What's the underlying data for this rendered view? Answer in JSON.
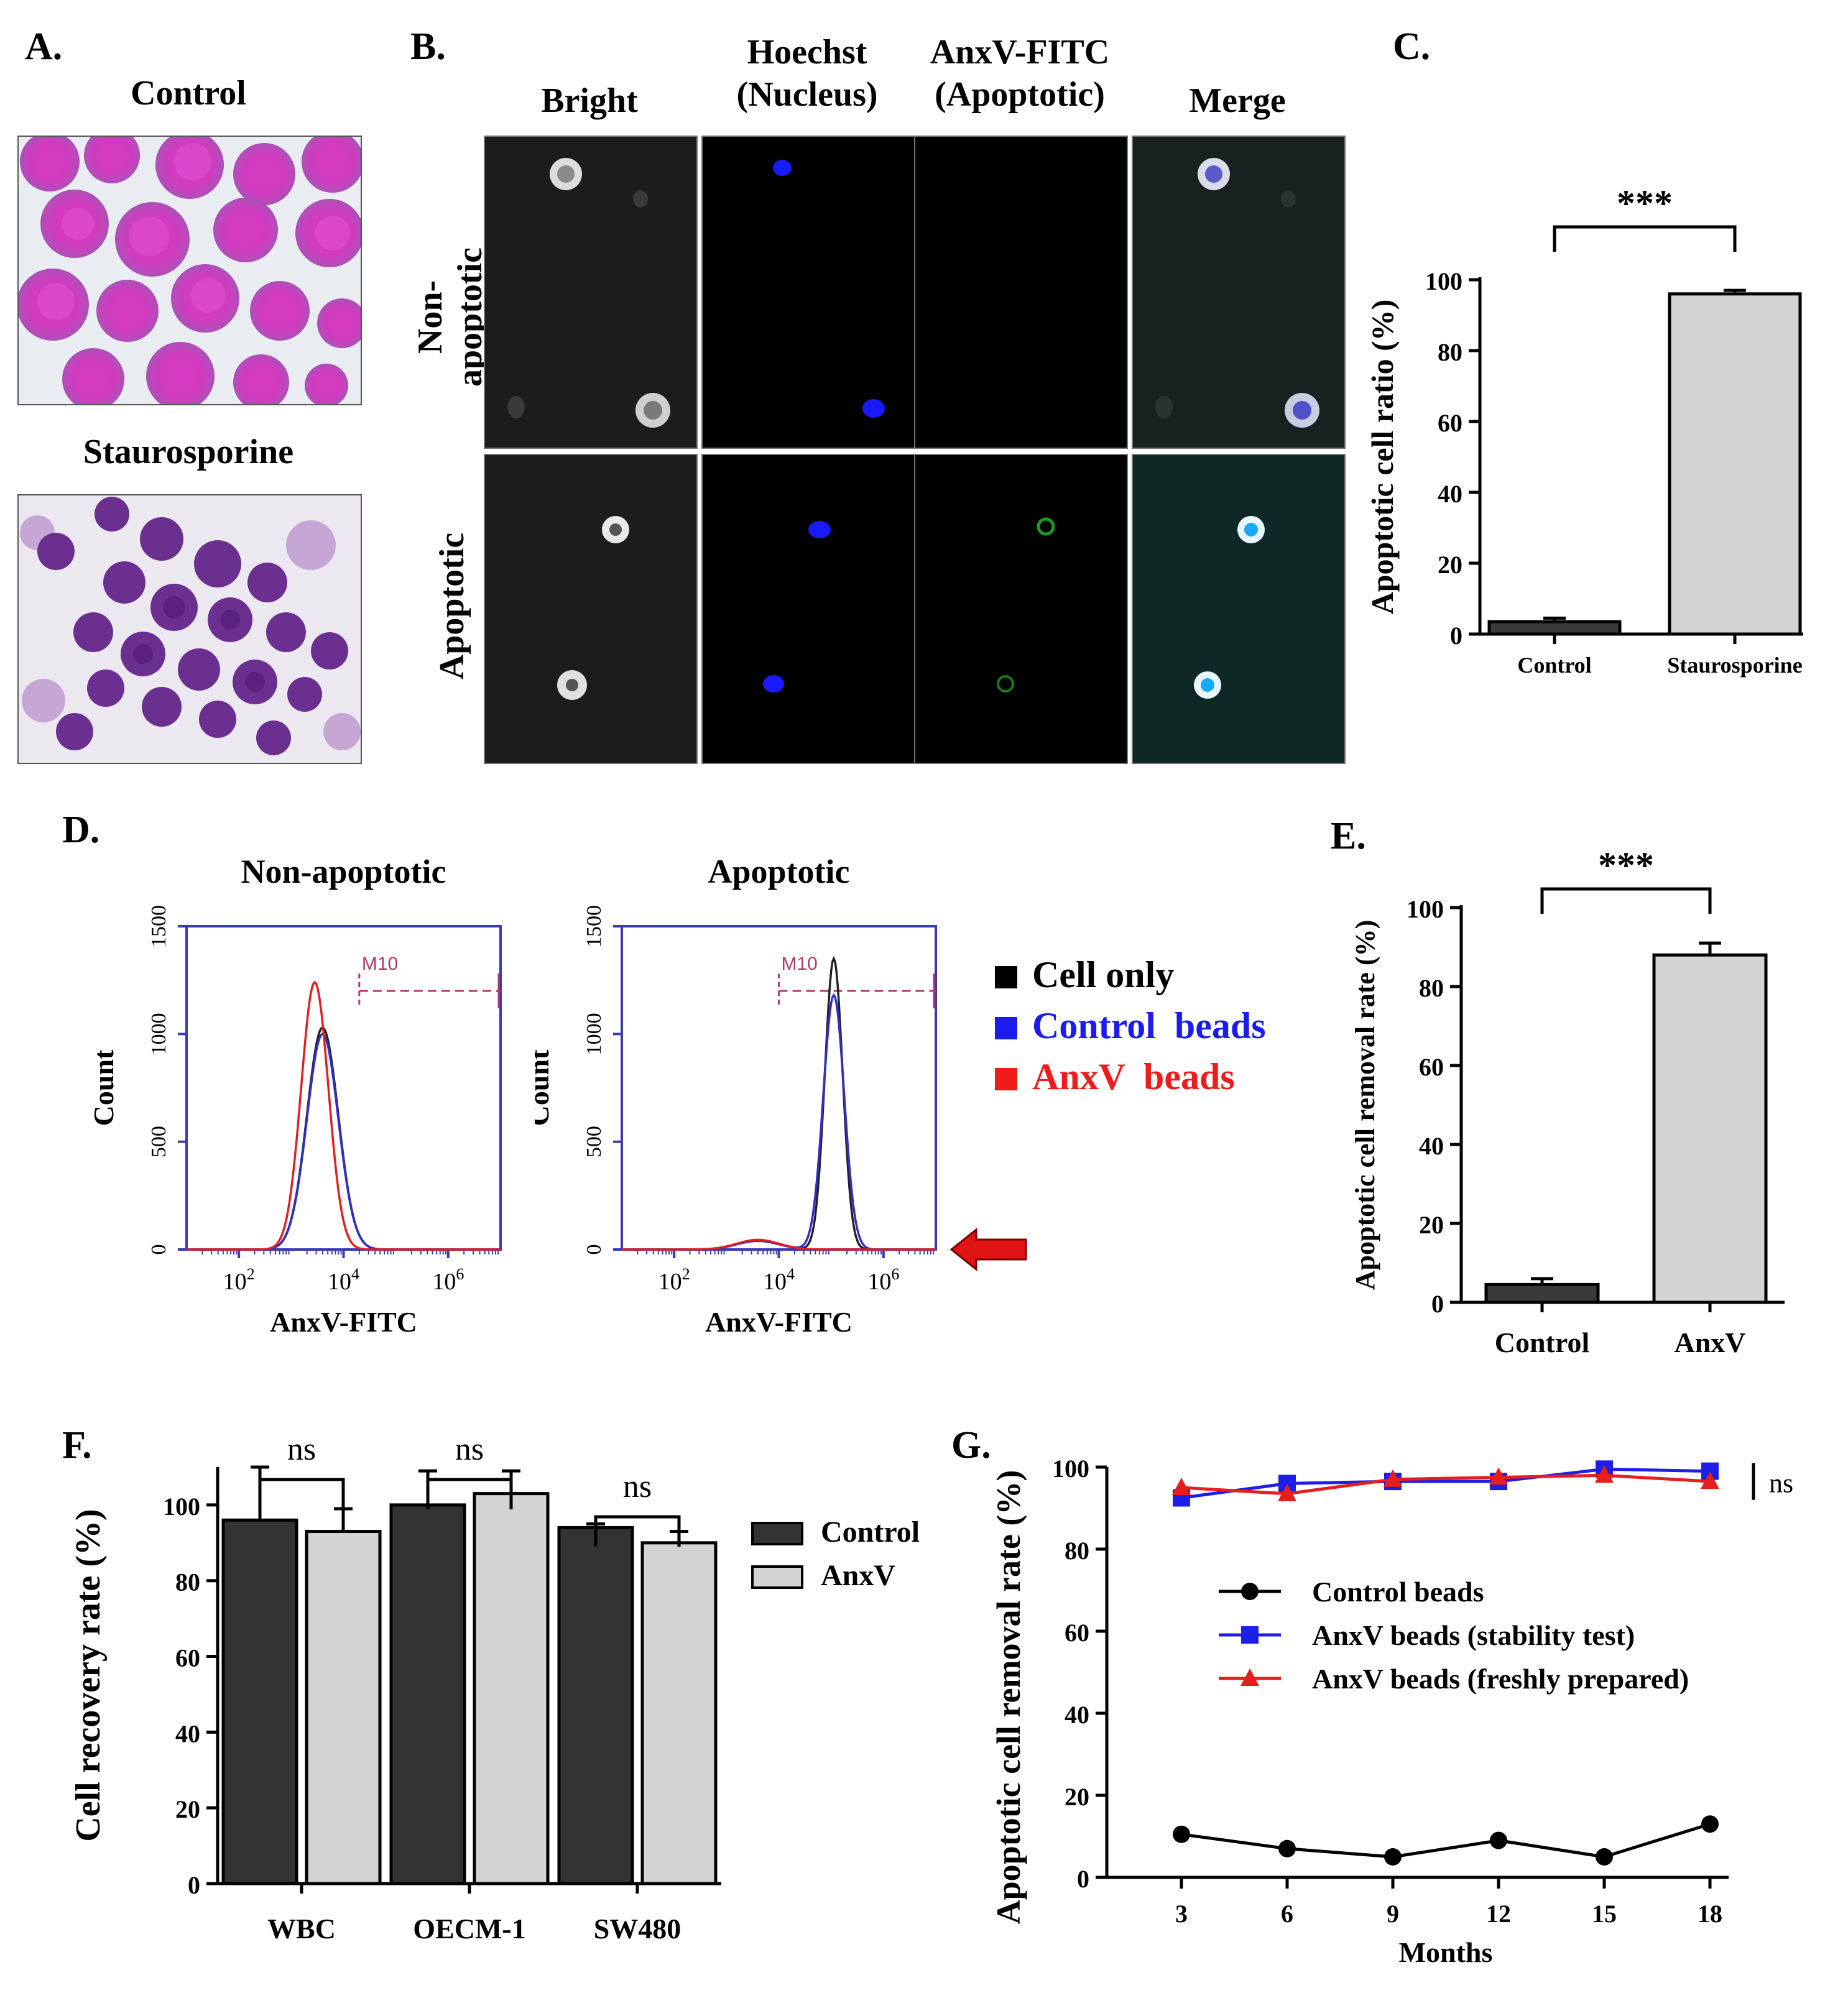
{
  "panel_a": {
    "label": "A.",
    "control_title": "Control",
    "treated_title": "Staurosporine"
  },
  "panel_b": {
    "label": "B.",
    "columns": [
      "Bright",
      "Hoechst\n(Nucleus)",
      "AnxV-FITC\n(Apoptotic)",
      "Merge"
    ],
    "rows": [
      "Non-\napoptotic",
      "Apoptotic"
    ]
  },
  "panel_c": {
    "label": "C."
  },
  "panel_d": {
    "label": "D."
  },
  "panel_e": {
    "label": "E."
  },
  "panel_f": {
    "label": "F."
  },
  "panel_g": {
    "label": "G."
  },
  "chart_data": [
    {
      "id": "C",
      "type": "bar",
      "categories": [
        "Control",
        "Staurosporine"
      ],
      "values": [
        3.5,
        96
      ],
      "errors": [
        1,
        1
      ],
      "colors": [
        "#3a3a3a",
        "#d3d3d3"
      ],
      "ylabel": "Apoptotic cell ratio (%)",
      "xlabel": "",
      "ylim": [
        0,
        100
      ],
      "yticks": [
        0,
        20,
        40,
        60,
        80,
        100
      ],
      "significance": "***"
    },
    {
      "id": "D1",
      "type": "line",
      "title": "Non-apoptotic",
      "xlabel": "AnxV-FITC",
      "ylabel": "Count",
      "xscale": "log",
      "xlim": [
        10,
        10000000
      ],
      "ylim": [
        0,
        1500
      ],
      "xtick_exponents": [
        2,
        4,
        6
      ],
      "yticks": [
        0,
        500,
        1000,
        1500
      ],
      "gate_label": "M10",
      "gate_range": [
        20000,
        10000000
      ],
      "gate_level": 1200,
      "series": [
        {
          "name": "Cell only",
          "color": "#222222",
          "peak_log": 3.6,
          "peak": 1030,
          "width": 0.3
        },
        {
          "name": "Control beads",
          "color": "#2f2fc8",
          "peak_log": 3.6,
          "peak": 1000,
          "width": 0.3
        },
        {
          "name": "AnxV beads",
          "color": "#e02020",
          "peak_log": 3.45,
          "peak": 1240,
          "width": 0.26
        }
      ]
    },
    {
      "id": "D2",
      "type": "line",
      "title": "Apoptotic",
      "xlabel": "AnxV-FITC",
      "ylabel": "Count",
      "xscale": "log",
      "xlim": [
        10,
        10000000
      ],
      "ylim": [
        0,
        1500
      ],
      "xtick_exponents": [
        2,
        4,
        6
      ],
      "yticks": [
        0,
        500,
        1000,
        1500
      ],
      "gate_label": "M10",
      "gate_range": [
        10000,
        10000000
      ],
      "gate_level": 1200,
      "series": [
        {
          "name": "Cell only",
          "color": "#222222",
          "peak_log": 5.05,
          "peak": 1350,
          "width": 0.17
        },
        {
          "name": "Control beads",
          "color": "#2f2fc8",
          "peak_log": 5.05,
          "peak": 1180,
          "width": 0.2
        },
        {
          "name": "AnxV beads",
          "color": "#e02020",
          "peak_log": 3.6,
          "peak": 45,
          "width": 0.4
        }
      ]
    },
    {
      "id": "D-legend",
      "type": "legend",
      "entries": [
        {
          "name": "Cell only",
          "color": "#000000"
        },
        {
          "name": "Control  beads",
          "color": "#1c1cf0"
        },
        {
          "name": "AnxV  beads",
          "color": "#f01c1c"
        }
      ]
    },
    {
      "id": "E",
      "type": "bar",
      "categories": [
        "Control",
        "AnxV"
      ],
      "values": [
        4.5,
        88
      ],
      "errors": [
        1.5,
        3
      ],
      "colors": [
        "#3a3a3a",
        "#d3d3d3"
      ],
      "ylabel": "Apoptotic cell removal rate (%)",
      "xlabel": "",
      "ylim": [
        0,
        100
      ],
      "yticks": [
        0,
        20,
        40,
        60,
        80,
        100
      ],
      "significance": "***"
    },
    {
      "id": "F",
      "type": "bar",
      "categories": [
        "WBC",
        "OECM-1",
        "SW480"
      ],
      "series": [
        {
          "name": "Control",
          "color": "#333333",
          "values": [
            96,
            100,
            94
          ],
          "errors": [
            14,
            9,
            1
          ]
        },
        {
          "name": "AnxV",
          "color": "#d3d3d3",
          "values": [
            93,
            103,
            90
          ],
          "errors": [
            6,
            6,
            3
          ]
        }
      ],
      "ylabel": "Cell recovery rate (%)",
      "xlabel": "",
      "ylim": [
        0,
        110
      ],
      "yticks": [
        0,
        20,
        40,
        60,
        80,
        100
      ],
      "significance": [
        "ns",
        "ns",
        "ns"
      ]
    },
    {
      "id": "G",
      "type": "line",
      "x": [
        3,
        6,
        9,
        12,
        15,
        18
      ],
      "series": [
        {
          "name": "Control beads",
          "color": "#000000",
          "marker": "circle",
          "values": [
            10.5,
            7,
            5,
            9,
            5,
            13
          ]
        },
        {
          "name": "AnxV beads (stability test)",
          "color": "#1e1ee6",
          "marker": "square",
          "values": [
            92.5,
            96,
            96.5,
            96.5,
            99.5,
            99
          ]
        },
        {
          "name": "AnxV beads (freshly prepared)",
          "color": "#e61e1e",
          "marker": "triangle",
          "values": [
            95,
            93.5,
            97,
            97.5,
            98,
            96.5
          ]
        }
      ],
      "xlabel": "Months",
      "ylabel": "Apoptotic cell removal rate (%)",
      "ylim": [
        0,
        100
      ],
      "yticks": [
        0,
        20,
        40,
        60,
        80,
        100
      ],
      "xticks": [
        3,
        6,
        9,
        12,
        15,
        18
      ],
      "significance": "ns"
    }
  ]
}
